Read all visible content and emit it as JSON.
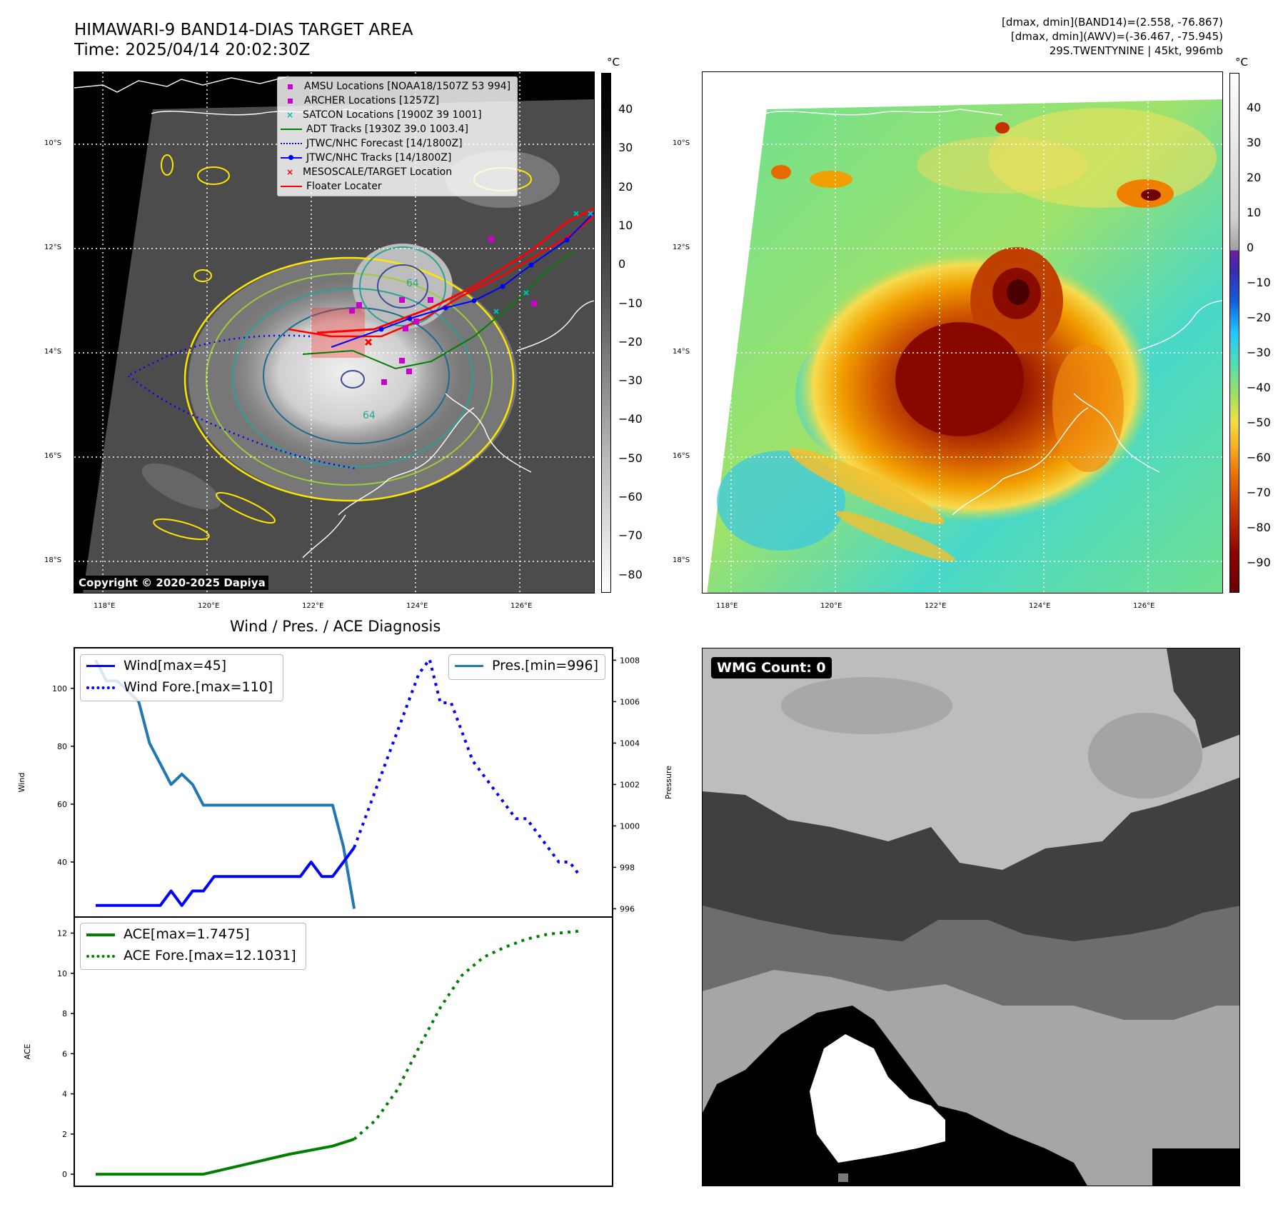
{
  "header": {
    "title_line1": "HIMAWARI-9 BAND14-DIAS TARGET AREA",
    "title_line2": "Time: 2025/04/14 20:02:30Z",
    "info_line1": "[dmax, dmin](BAND14)=(2.558, -76.867)",
    "info_line2": "[dmax, dmin](AWV)=(-36.467, -75.945)",
    "info_line3": "29S.TWENTYNINE | 45kt, 996mb"
  },
  "map": {
    "lat_labels": [
      "10°S",
      "12°S",
      "14°S",
      "16°S",
      "18°S"
    ],
    "lon_labels": [
      "118°E",
      "120°E",
      "122°E",
      "124°E",
      "126°E"
    ],
    "copyright": "Copyright © 2020-2025 Dapiya",
    "contour_label_a": "64",
    "contour_label_b": "64",
    "legend": [
      {
        "label": "AMSU Locations [NOAA18/1507Z 53 994]",
        "color": "#cc00cc",
        "marker": "square"
      },
      {
        "label": "ARCHER Locations [1257Z]",
        "color": "#cc00cc",
        "marker": "square"
      },
      {
        "label": "SATCON Locations [1900Z 39 1001]",
        "color": "#00bbbb",
        "marker": "x"
      },
      {
        "label": "ADT Tracks [1930Z 39.0 1003.4]",
        "color": "#008000",
        "marker": "line"
      },
      {
        "label": "JTWC/NHC Forecast [14/1800Z]",
        "color": "#0000ff",
        "marker": "dotted"
      },
      {
        "label": "JTWC/NHC Tracks [14/1800Z]",
        "color": "#0000ff",
        "marker": "line-dot"
      },
      {
        "label": "MESOSCALE/TARGET Location",
        "color": "#ff0000",
        "marker": "x"
      },
      {
        "label": "Floater Locater",
        "color": "#ff0000",
        "marker": "line"
      }
    ]
  },
  "colorbars": {
    "unit": "°C",
    "gray_ticks": [
      "40",
      "30",
      "20",
      "10",
      "0",
      "−10",
      "−20",
      "−30",
      "−40",
      "−50",
      "−60",
      "−70",
      "−80"
    ],
    "color_ticks": [
      "40",
      "30",
      "20",
      "10",
      "0",
      "−10",
      "−20",
      "−30",
      "−40",
      "−50",
      "−60",
      "−70",
      "−80",
      "−90"
    ]
  },
  "diagnosis": {
    "title": "Wind / Pres. / ACE Diagnosis",
    "wmg_badge": "WMG Count: 0"
  },
  "chart_data": [
    {
      "type": "line",
      "title": "Wind / Pres. / ACE Diagnosis",
      "ylabel": "Wind",
      "ylim": [
        21,
        114
      ],
      "yticks": [
        "40",
        "60",
        "80",
        "100"
      ],
      "series": [
        {
          "name": "Wind[max=45]",
          "color": "#0000ff",
          "style": "solid",
          "x": [
            0,
            1,
            2,
            3,
            4,
            5,
            6,
            7,
            8,
            9,
            10,
            11,
            12,
            13,
            14,
            15,
            16,
            17,
            18,
            19,
            20,
            21,
            22,
            23,
            24
          ],
          "values": [
            25,
            25,
            25,
            25,
            25,
            25,
            25,
            30,
            25,
            30,
            30,
            35,
            35,
            35,
            35,
            35,
            35,
            35,
            35,
            35,
            40,
            35,
            35,
            40,
            45
          ]
        },
        {
          "name": "Wind Fore.[max=110]",
          "color": "#0000ff",
          "style": "dotted",
          "x": [
            24,
            25,
            26,
            27,
            28,
            29,
            30,
            31,
            32,
            33,
            34,
            35,
            36,
            37,
            38,
            39,
            40,
            41,
            42,
            43,
            44,
            45
          ],
          "values": [
            45,
            55,
            65,
            75,
            85,
            95,
            105,
            110,
            95,
            95,
            85,
            75,
            70,
            65,
            60,
            55,
            55,
            50,
            45,
            40,
            40,
            35
          ]
        }
      ]
    },
    {
      "type": "line",
      "ylabel": "Pressure",
      "ylim": [
        995.6,
        1008.6
      ],
      "yticks": [
        "996",
        "998",
        "1000",
        "1002",
        "1004",
        "1006",
        "1008"
      ],
      "series": [
        {
          "name": "Pres.[min=996]",
          "color": "#1f77b4",
          "style": "solid",
          "x": [
            0,
            1,
            2,
            3,
            4,
            5,
            6,
            7,
            8,
            9,
            10,
            11,
            12,
            13,
            14,
            15,
            16,
            17,
            18,
            19,
            20,
            21,
            22,
            23,
            24
          ],
          "values": [
            1008,
            1007,
            1007,
            1006.5,
            1006,
            1004,
            1003,
            1002,
            1002.5,
            1002,
            1001,
            1001,
            1001,
            1001,
            1001,
            1001,
            1001,
            1001,
            1001,
            1001,
            1001,
            1001,
            1001,
            999,
            996
          ]
        }
      ]
    },
    {
      "type": "line",
      "ylabel": "ACE",
      "ylim": [
        -0.6,
        12.8
      ],
      "yticks": [
        "0",
        "2",
        "4",
        "6",
        "8",
        "10",
        "12"
      ],
      "series": [
        {
          "name": "ACE[max=1.7475]",
          "color": "#008000",
          "style": "solid",
          "x": [
            0,
            5,
            10,
            12,
            14,
            16,
            18,
            20,
            22,
            24
          ],
          "values": [
            0,
            0,
            0,
            0.25,
            0.5,
            0.75,
            1.0,
            1.2,
            1.4,
            1.7475
          ]
        },
        {
          "name": "ACE Fore.[max=12.1031]",
          "color": "#008000",
          "style": "dotted",
          "x": [
            24,
            26,
            28,
            30,
            32,
            34,
            36,
            38,
            40,
            42,
            45
          ],
          "values": [
            1.7475,
            2.7,
            4.2,
            6.3,
            8.3,
            9.9,
            10.8,
            11.3,
            11.7,
            11.95,
            12.1031
          ]
        }
      ]
    }
  ]
}
